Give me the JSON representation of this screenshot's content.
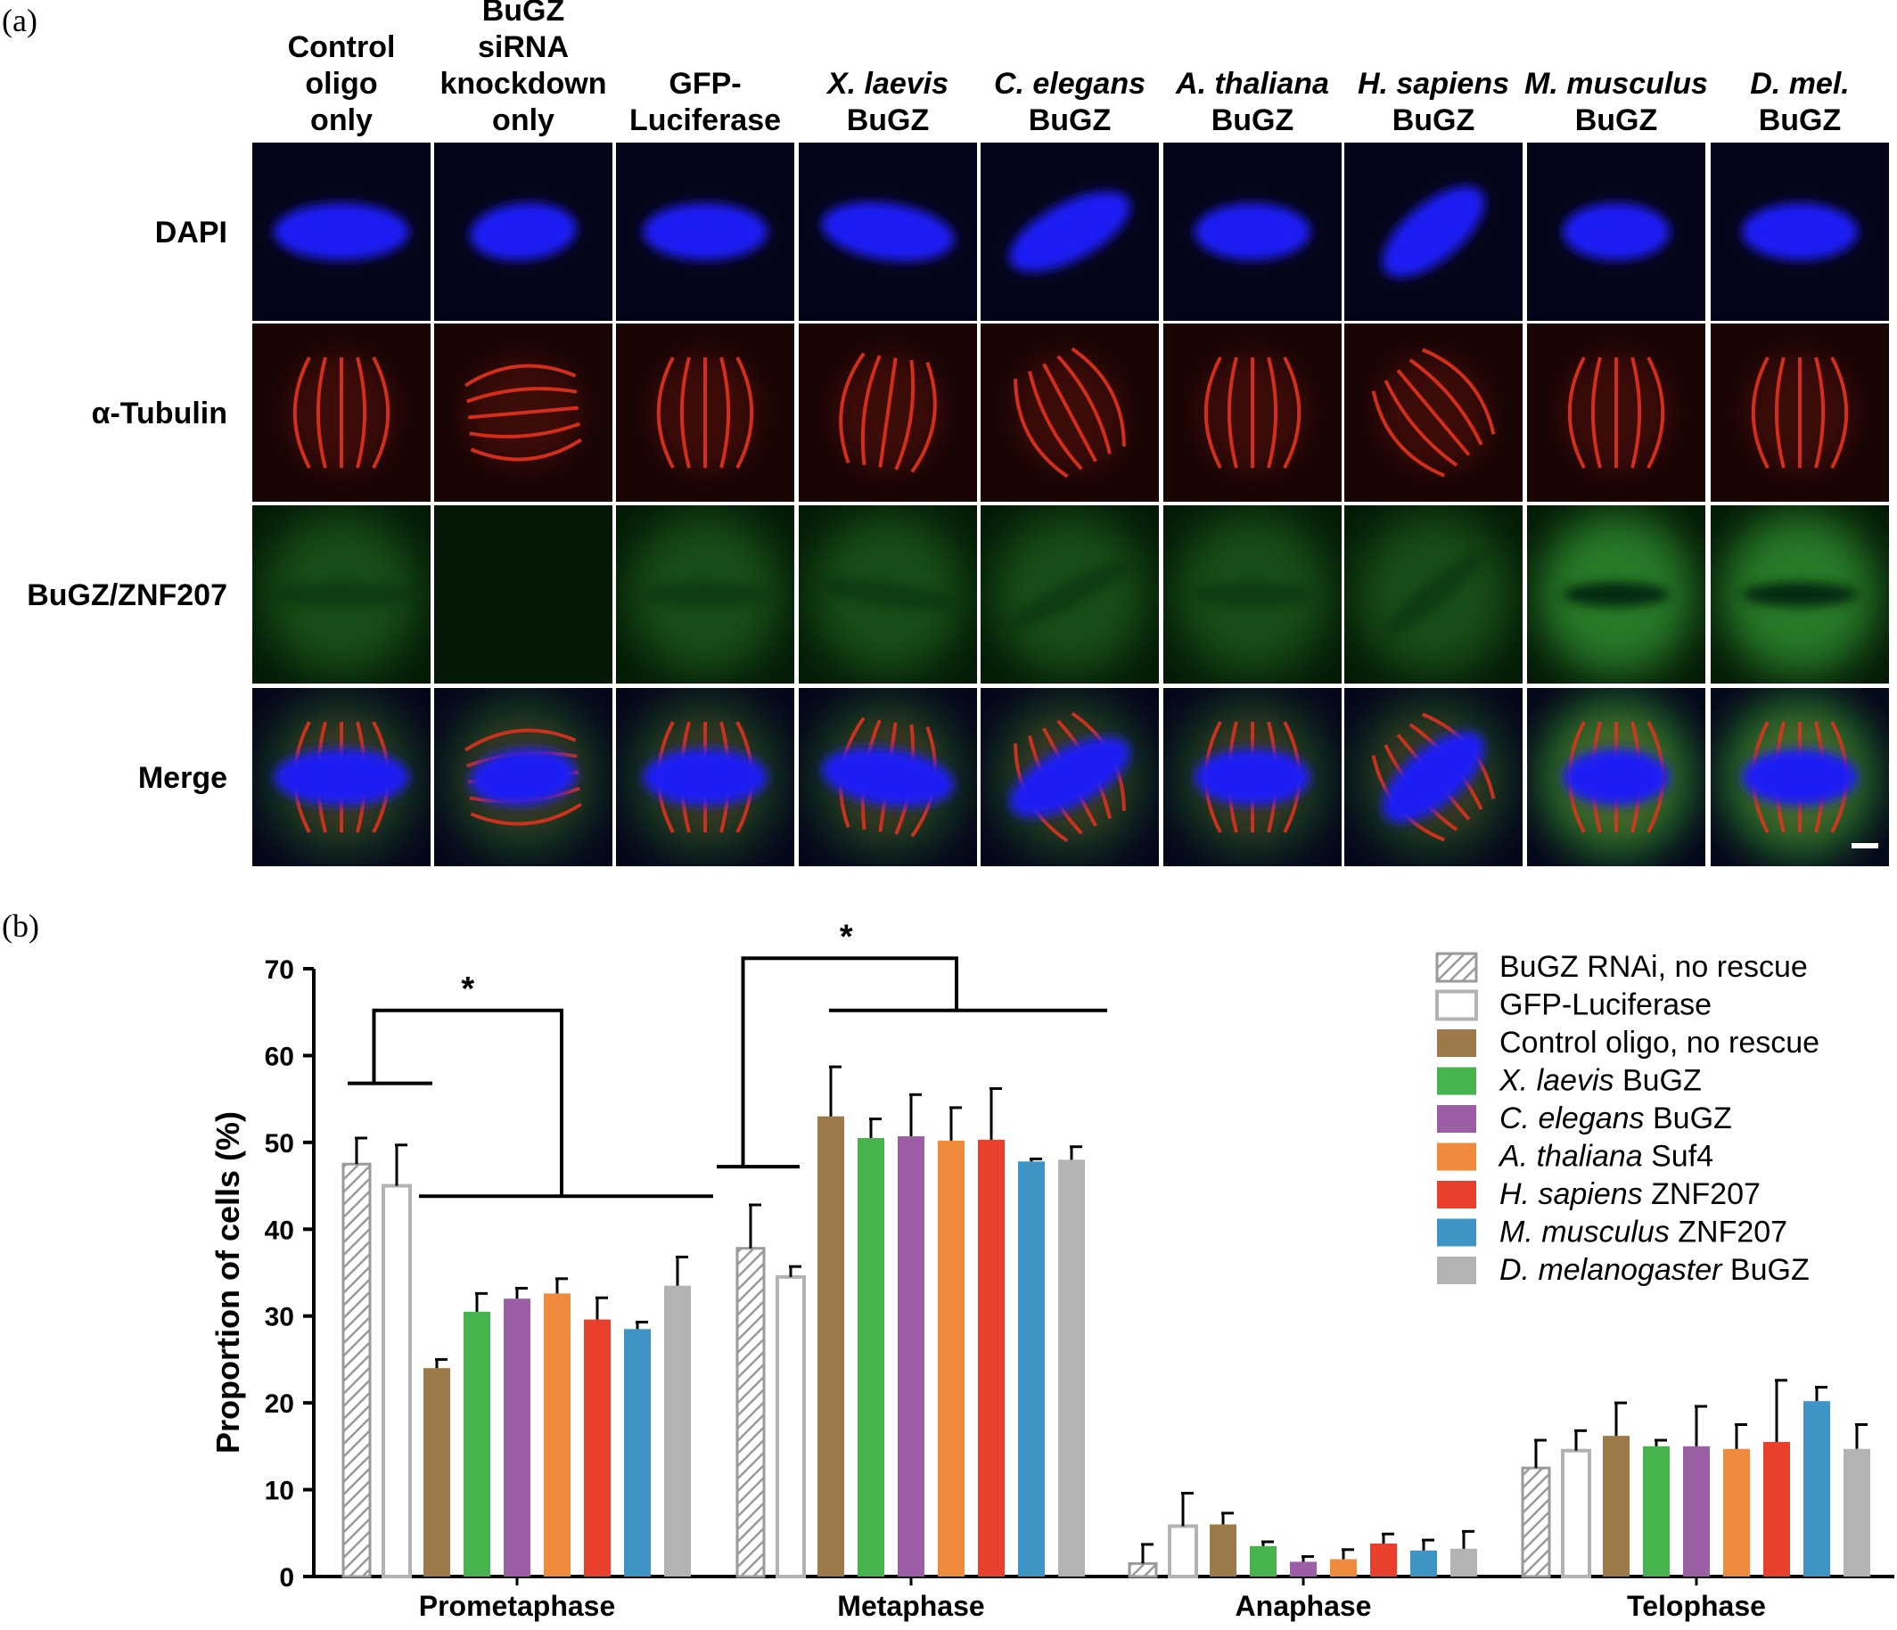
{
  "panel_a": {
    "label": "(a)",
    "columns": [
      {
        "lines": [
          {
            "parts": [
              {
                "t": "Control"
              }
            ]
          },
          {
            "parts": [
              {
                "t": "oligo"
              }
            ]
          },
          {
            "parts": [
              {
                "t": "only"
              }
            ]
          }
        ]
      },
      {
        "lines": [
          {
            "parts": [
              {
                "t": "BuGZ"
              }
            ]
          },
          {
            "parts": [
              {
                "t": "siRNA"
              }
            ]
          },
          {
            "parts": [
              {
                "t": "knockdown"
              }
            ]
          },
          {
            "parts": [
              {
                "t": "only"
              }
            ]
          }
        ]
      },
      {
        "lines": [
          {
            "parts": [
              {
                "t": "GFP-"
              }
            ]
          },
          {
            "parts": [
              {
                "t": "Luciferase"
              }
            ]
          }
        ]
      },
      {
        "lines": [
          {
            "parts": [
              {
                "t": "X. laevis",
                "i": true
              }
            ]
          },
          {
            "parts": [
              {
                "t": "BuGZ"
              }
            ]
          }
        ]
      },
      {
        "lines": [
          {
            "parts": [
              {
                "t": "C. elegans",
                "i": true
              }
            ]
          },
          {
            "parts": [
              {
                "t": "BuGZ"
              }
            ]
          }
        ]
      },
      {
        "lines": [
          {
            "parts": [
              {
                "t": "A. thaliana",
                "i": true
              }
            ]
          },
          {
            "parts": [
              {
                "t": "BuGZ"
              }
            ]
          }
        ]
      },
      {
        "lines": [
          {
            "parts": [
              {
                "t": "H. sapiens",
                "i": true
              }
            ]
          },
          {
            "parts": [
              {
                "t": "BuGZ"
              }
            ]
          }
        ]
      },
      {
        "lines": [
          {
            "parts": [
              {
                "t": "M. musculus",
                "i": true
              }
            ]
          },
          {
            "parts": [
              {
                "t": "BuGZ"
              }
            ]
          }
        ]
      },
      {
        "lines": [
          {
            "parts": [
              {
                "t": "D. mel.",
                "i": true
              }
            ]
          },
          {
            "parts": [
              {
                "t": "BuGZ"
              }
            ]
          }
        ]
      }
    ],
    "rows": [
      "DAPI",
      "α-Tubulin",
      "BuGZ/ZNF207",
      "Merge"
    ],
    "colors": {
      "dapi": "#1f1ff5",
      "tubulin": "#e8331f",
      "bugz": "#2f8c2f",
      "background": "#05051a"
    }
  },
  "panel_b": {
    "label": "(b)",
    "significance": "*",
    "legend": [
      {
        "parts": [
          {
            "t": "BuGZ RNAi, no rescue"
          }
        ],
        "style": "hatch",
        "color": "#9a9a9a"
      },
      {
        "parts": [
          {
            "t": "GFP-Luciferase"
          }
        ],
        "style": "outline",
        "color": "#b3b3b3"
      },
      {
        "parts": [
          {
            "t": "Control oligo, no rescue"
          }
        ],
        "style": "fill",
        "color": "#9e7a4a"
      },
      {
        "parts": [
          {
            "t": "X. laevis",
            "i": true
          },
          {
            "t": " BuGZ"
          }
        ],
        "style": "fill",
        "color": "#47b34d"
      },
      {
        "parts": [
          {
            "t": "C. elegans",
            "i": true
          },
          {
            "t": " BuGZ"
          }
        ],
        "style": "fill",
        "color": "#9c5fa6"
      },
      {
        "parts": [
          {
            "t": "A. thaliana",
            "i": true
          },
          {
            "t": " Suf4"
          }
        ],
        "style": "fill",
        "color": "#f08a3c"
      },
      {
        "parts": [
          {
            "t": "H. sapiens",
            "i": true
          },
          {
            "t": " ZNF207"
          }
        ],
        "style": "fill",
        "color": "#e8402c"
      },
      {
        "parts": [
          {
            "t": "M. musculus",
            "i": true
          },
          {
            "t": " ZNF207"
          }
        ],
        "style": "fill",
        "color": "#3f94c6"
      },
      {
        "parts": [
          {
            "t": "D. melanogaster",
            "i": true
          },
          {
            "t": " BuGZ"
          }
        ],
        "style": "fill",
        "color": "#b3b3b3"
      }
    ]
  },
  "chart_data": {
    "type": "bar",
    "ylabel": "Proportion of cells (%)",
    "xlabel": "",
    "ylim": [
      0,
      70
    ],
    "yticks": [
      0,
      10,
      20,
      30,
      40,
      50,
      60,
      70
    ],
    "grid": false,
    "legend_position": "top-right",
    "categories": [
      "Prometaphase",
      "Metaphase",
      "Anaphase",
      "Telophase"
    ],
    "series": [
      {
        "name": "BuGZ RNAi, no rescue",
        "values": [
          47.5,
          37.8,
          1.5,
          12.5
        ],
        "errors": [
          3.0,
          5.0,
          2.2,
          3.2
        ]
      },
      {
        "name": "GFP-Luciferase",
        "values": [
          45.0,
          34.5,
          5.8,
          14.5
        ],
        "errors": [
          4.7,
          1.2,
          3.8,
          2.3
        ]
      },
      {
        "name": "Control oligo, no rescue",
        "values": [
          24.0,
          53.0,
          6.0,
          16.2
        ],
        "errors": [
          1.0,
          5.7,
          1.3,
          3.8
        ]
      },
      {
        "name": "X. laevis BuGZ",
        "values": [
          30.5,
          50.5,
          3.5,
          15.0
        ],
        "errors": [
          2.1,
          2.2,
          0.5,
          0.7
        ]
      },
      {
        "name": "C. elegans BuGZ",
        "values": [
          32.0,
          50.7,
          1.7,
          15.0
        ],
        "errors": [
          1.2,
          4.8,
          0.6,
          4.6
        ]
      },
      {
        "name": "A. thaliana Suf4",
        "values": [
          32.6,
          50.2,
          2.0,
          14.7
        ],
        "errors": [
          1.7,
          3.8,
          1.1,
          2.8
        ]
      },
      {
        "name": "H. sapiens ZNF207",
        "values": [
          29.6,
          50.3,
          3.8,
          15.5
        ],
        "errors": [
          2.5,
          5.9,
          1.1,
          7.1
        ]
      },
      {
        "name": "M. musculus ZNF207",
        "values": [
          28.5,
          47.8,
          3.0,
          20.2
        ],
        "errors": [
          0.8,
          0.3,
          1.2,
          1.6
        ]
      },
      {
        "name": "D. melanogaster BuGZ",
        "values": [
          33.5,
          48.0,
          3.2,
          14.7
        ],
        "errors": [
          3.3,
          1.5,
          2.0,
          2.8
        ]
      }
    ]
  }
}
